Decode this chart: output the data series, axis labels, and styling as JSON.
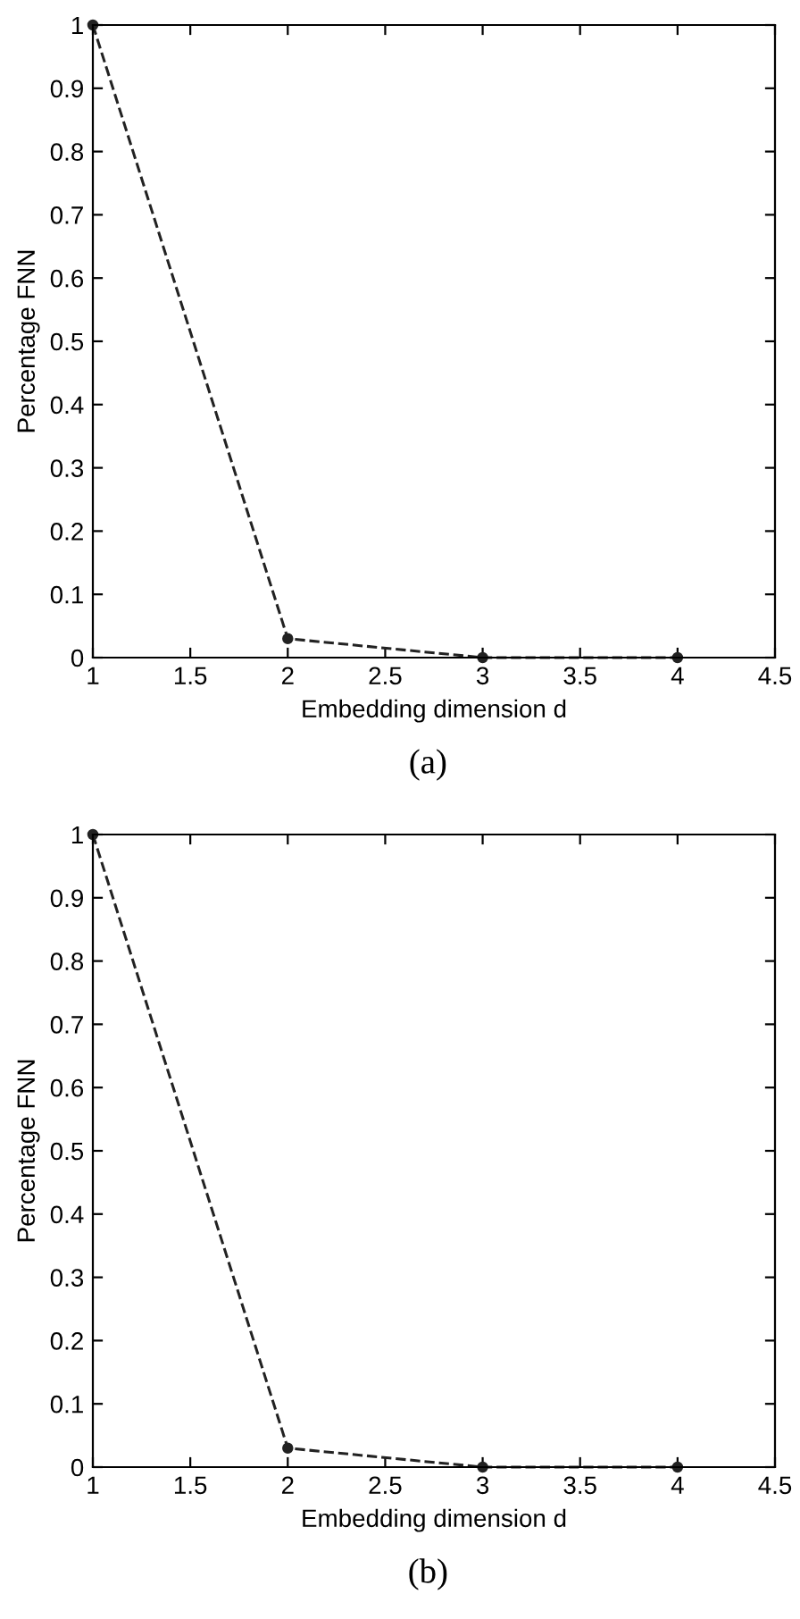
{
  "chart_data": [
    {
      "type": "line",
      "xlabel": "Embedding dimension d",
      "ylabel": "Percentage FNN",
      "annotations": [
        "(a)"
      ],
      "x": [
        1,
        2,
        3,
        4
      ],
      "series": [
        {
          "color": "#222222",
          "values": [
            1,
            0.03,
            0,
            0
          ]
        }
      ],
      "xlim": [
        1,
        4.5
      ],
      "ylim": [
        0,
        1
      ],
      "xticks": [
        1,
        1.5,
        2,
        2.5,
        3,
        3.5,
        4,
        4.5
      ],
      "yticks": [
        0,
        0.1,
        0.2,
        0.3,
        0.4,
        0.5,
        0.6,
        0.7,
        0.8,
        0.9,
        1
      ],
      "grid": false,
      "legend": false,
      "marker": "circle",
      "line_style": "dashed"
    },
    {
      "type": "line",
      "xlabel": "Embedding dimension d",
      "ylabel": "Percentage FNN",
      "annotations": [
        "(b)"
      ],
      "x": [
        1,
        2,
        3,
        4
      ],
      "series": [
        {
          "color": "#222222",
          "values": [
            1,
            0.03,
            0,
            0
          ]
        }
      ],
      "xlim": [
        1,
        4.5
      ],
      "ylim": [
        0,
        1
      ],
      "xticks": [
        1,
        1.5,
        2,
        2.5,
        3,
        3.5,
        4,
        4.5
      ],
      "yticks": [
        0,
        0.1,
        0.2,
        0.3,
        0.4,
        0.5,
        0.6,
        0.7,
        0.8,
        0.9,
        1
      ],
      "grid": false,
      "legend": false,
      "marker": "circle",
      "line_style": "dashed"
    }
  ]
}
